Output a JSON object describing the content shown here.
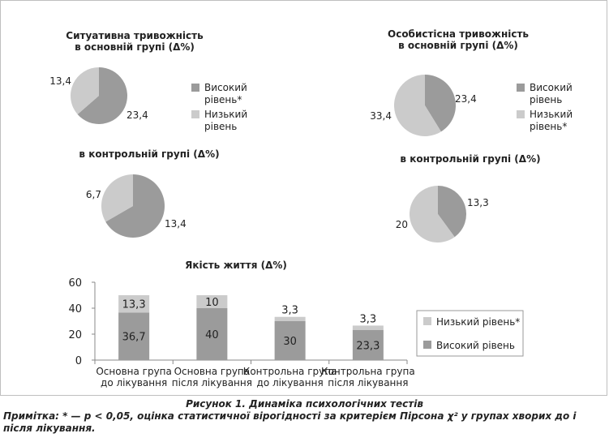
{
  "colors": {
    "high": "#9b9b9b",
    "low": "#cbcbcb",
    "axis": "#888888",
    "grid": "#bdbdbd"
  },
  "legend_pie_left": {
    "high": "Високий рівень*",
    "low": "Низький рівень"
  },
  "legend_pie_right": {
    "high": "Високий рівень",
    "low": "Низький рівень*"
  },
  "legend_bar": {
    "low": "Низький рівень*",
    "high": "Високий рівень"
  },
  "caption": "Рисунок 1. Динаміка психологічних тестів",
  "note": "Примітка: * — р < 0,05, оцінка статистичної вірогідності за критерієм Пірсона χ² у групах хворих до і після лікування.",
  "chart_data": [
    {
      "type": "pie",
      "title": "Ситуативна тривожність в основній групі (Δ%)",
      "slices": [
        {
          "name": "Високий рівень*",
          "value": 23.4
        },
        {
          "name": "Низький рівень",
          "value": 13.4
        }
      ]
    },
    {
      "type": "pie",
      "title": "в контрольній групі (Δ%)",
      "slices": [
        {
          "name": "Високий рівень*",
          "value": 13.4
        },
        {
          "name": "Низький рівень",
          "value": 6.7
        }
      ]
    },
    {
      "type": "pie",
      "title": "Особистісна тривожність в основній групі (Δ%)",
      "slices": [
        {
          "name": "Високий рівень",
          "value": 23.4
        },
        {
          "name": "Низький рівень*",
          "value": 33.4
        }
      ]
    },
    {
      "type": "pie",
      "title": "в контрольній групі (Δ%)",
      "slices": [
        {
          "name": "Високий рівень",
          "value": 13.3
        },
        {
          "name": "Низький рівень*",
          "value": 20
        }
      ]
    },
    {
      "type": "bar",
      "stacked": true,
      "title": "Якість життя (Δ%)",
      "categories": [
        "Основна група до лікування",
        "Основна група після лікування",
        "Контрольна група до лікування",
        "Контрольна група після лікування"
      ],
      "category_lines": [
        [
          "Основна група",
          "до лікування"
        ],
        [
          "Основна група",
          "після лікування"
        ],
        [
          "Контрольна група",
          "до лікування"
        ],
        [
          "Контрольна група",
          "після лікування"
        ]
      ],
      "series": [
        {
          "name": "Високий рівень",
          "values": [
            36.7,
            40,
            30,
            23.3
          ]
        },
        {
          "name": "Низький рівень*",
          "values": [
            13.3,
            10,
            3.3,
            3.3
          ]
        }
      ],
      "ylim": [
        0,
        60
      ],
      "yticks": [
        0,
        20,
        40,
        60
      ],
      "legend": "right"
    }
  ],
  "text": {
    "pie1_title": [
      "Ситуативна тривожність",
      "в основній групі (Δ%)"
    ],
    "pie2_title": [
      "в контрольній групі (Δ%)"
    ],
    "pie3_title": [
      "Особистісна тривожність",
      "в основній групі (Δ%)"
    ],
    "pie4_title": [
      "в контрольній групі (Δ%)"
    ]
  }
}
